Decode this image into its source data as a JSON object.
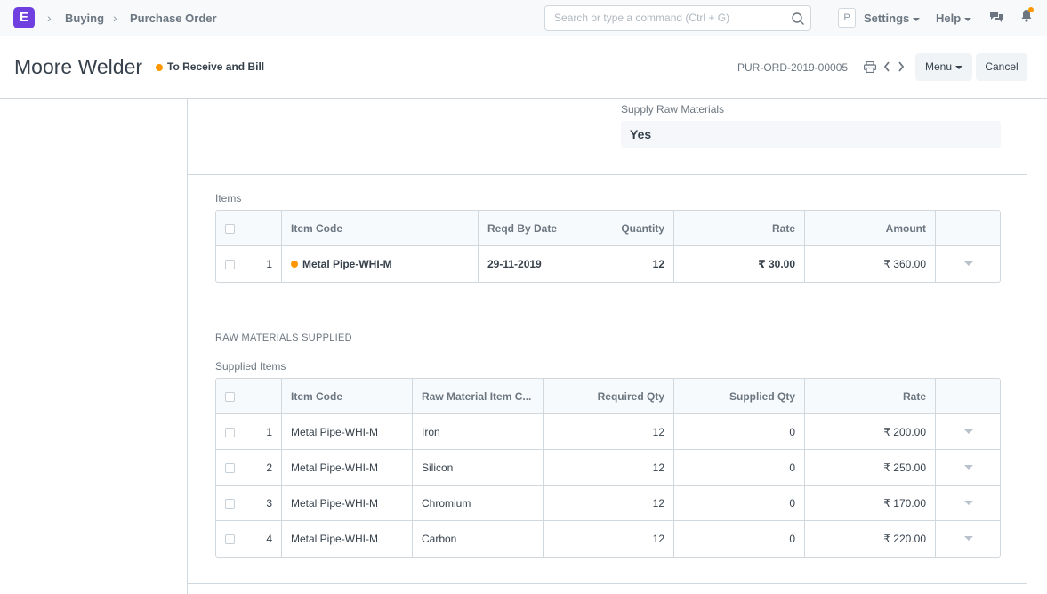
{
  "navbar": {
    "logo_letter": "E",
    "breadcrumbs": [
      "Buying",
      "Purchase Order"
    ],
    "search_placeholder": "Search or type a command (Ctrl + G)",
    "avatar_letter": "P",
    "settings_label": "Settings",
    "help_label": "Help",
    "icons": [
      "search-icon",
      "chat-icon",
      "bell-icon"
    ]
  },
  "page": {
    "title": "Moore Welder",
    "status": "To Receive and Bill",
    "doc_name": "PUR-ORD-2019-00005",
    "menu_label": "Menu",
    "cancel_label": "Cancel"
  },
  "supply": {
    "label": "Supply Raw Materials",
    "value": "Yes"
  },
  "items": {
    "label": "Items",
    "columns": [
      "Item Code",
      "Reqd By Date",
      "Quantity",
      "Rate",
      "Amount"
    ],
    "rows": [
      {
        "idx": "1",
        "item_code": "Metal Pipe-WHI-M",
        "reqd_by_date": "29-11-2019",
        "quantity": "12",
        "rate": "₹ 30.00",
        "amount": "₹ 360.00"
      }
    ]
  },
  "raw_materials": {
    "section_title": "RAW MATERIALS SUPPLIED",
    "label": "Supplied Items",
    "columns": [
      "Item Code",
      "Raw Material Item C...",
      "Required Qty",
      "Supplied Qty",
      "Rate"
    ],
    "rows": [
      {
        "idx": "1",
        "item_code": "Metal Pipe-WHI-M",
        "raw_material": "Iron",
        "required_qty": "12",
        "supplied_qty": "0",
        "rate": "₹ 200.00"
      },
      {
        "idx": "2",
        "item_code": "Metal Pipe-WHI-M",
        "raw_material": "Silicon",
        "required_qty": "12",
        "supplied_qty": "0",
        "rate": "₹ 250.00"
      },
      {
        "idx": "3",
        "item_code": "Metal Pipe-WHI-M",
        "raw_material": "Chromium",
        "required_qty": "12",
        "supplied_qty": "0",
        "rate": "₹ 170.00"
      },
      {
        "idx": "4",
        "item_code": "Metal Pipe-WHI-M",
        "raw_material": "Carbon",
        "required_qty": "12",
        "supplied_qty": "0",
        "rate": "₹ 220.00"
      }
    ]
  },
  "colors": {
    "accent": "#6f3fe0",
    "status_orange": "#ff9800"
  }
}
